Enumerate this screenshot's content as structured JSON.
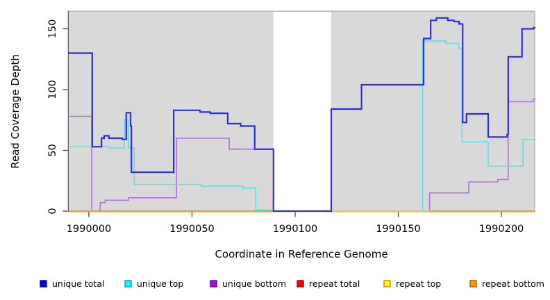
{
  "figure_title": "",
  "chart_data": {
    "type": "line",
    "step": true,
    "title": "",
    "xlabel": "Coordinate in Reference Genome",
    "ylabel": "Read Coverage Depth",
    "xlim": [
      1989990,
      1990216.5
    ],
    "ylim": [
      0,
      165
    ],
    "x_ticks": [
      1990000,
      1990050,
      1990100,
      1990150,
      1990200
    ],
    "x_tick_labels": [
      "1990000",
      "1990050",
      "1990100",
      "1990150",
      "1990200"
    ],
    "y_ticks": [
      0,
      50,
      100,
      150
    ],
    "y_tick_labels": [
      "0",
      "50",
      "100",
      "150"
    ],
    "grid": false,
    "plot_bg_color": "#d9d9d9",
    "panel_border_color": "#a3a3a3",
    "gap_region": {
      "from": 1990089.5,
      "to": 1990117.5,
      "color": "#ffffff"
    },
    "legend_position": "bottom",
    "series": [
      {
        "name": "unique bottom",
        "line_color": "#b470e2",
        "line_width": 1.6,
        "segments": [
          [
            [
              1989990,
              78
            ],
            [
              1990001.4,
              0
            ],
            [
              1990005.5,
              7
            ],
            [
              1990007.9,
              9
            ],
            [
              1990019.2,
              11
            ],
            [
              1990042.5,
              60
            ],
            [
              1990068,
              51
            ],
            [
              1990089.5,
              0
            ],
            [
              1990165.2,
              15
            ],
            [
              1990184.2,
              24
            ],
            [
              1990198.2,
              26
            ],
            [
              1990203.3,
              90
            ],
            [
              1990215.6,
              92
            ],
            [
              1990216.5,
              92
            ]
          ]
        ]
      },
      {
        "name": "unique top",
        "line_color": "#5cdee6",
        "line_width": 1.6,
        "segments": [
          [
            [
              1989990,
              53
            ],
            [
              1990009.7,
              52
            ],
            [
              1990017.2,
              75
            ],
            [
              1990019.2,
              52
            ],
            [
              1990022,
              22
            ],
            [
              1990054.5,
              20.5
            ],
            [
              1990074.7,
              19
            ],
            [
              1990080.9,
              1
            ],
            [
              1990089.5,
              0
            ],
            [
              1990161.8,
              140
            ],
            [
              1990173,
              138
            ],
            [
              1990179.3,
              134
            ],
            [
              1990180.9,
              57
            ],
            [
              1990193.6,
              37
            ],
            [
              1990210.5,
              59
            ],
            [
              1990216.5,
              59
            ]
          ]
        ]
      },
      {
        "name": "repeat total",
        "line_color": "#e8536a",
        "line_width": 1.8,
        "segments": [
          [
            [
              1989990,
              0
            ],
            [
              1990216.5,
              0
            ]
          ]
        ]
      },
      {
        "name": "repeat top",
        "line_color": "#f5e626",
        "line_width": 1.4,
        "segments": [
          [
            [
              1989990,
              0
            ],
            [
              1990216.5,
              0
            ]
          ]
        ]
      },
      {
        "name": "repeat bottom",
        "line_color": "#ff9a1f",
        "line_width": 2,
        "segments": [
          [
            [
              1989990,
              0
            ],
            [
              1990089.5,
              0
            ]
          ],
          [
            [
              1990165.2,
              0
            ],
            [
              1990216.5,
              0
            ]
          ]
        ]
      },
      {
        "name": "unique total",
        "line_color": "#2d2de0",
        "line_width": 2.2,
        "segments": [
          [
            [
              1989990,
              130
            ],
            [
              1990001.6,
              53
            ],
            [
              1990006.1,
              60
            ],
            [
              1990007.4,
              62
            ],
            [
              1990009.7,
              60
            ],
            [
              1990016.2,
              59
            ],
            [
              1990018.1,
              81
            ],
            [
              1990020.2,
              70
            ],
            [
              1990020.6,
              32
            ],
            [
              1990041.1,
              83
            ],
            [
              1990053.9,
              81.5
            ],
            [
              1990058.9,
              80.5
            ],
            [
              1990067.3,
              72
            ],
            [
              1990073.6,
              70
            ],
            [
              1990080.4,
              51
            ],
            [
              1990089.5,
              0
            ],
            [
              1990117.5,
              84
            ],
            [
              1990132.2,
              104
            ],
            [
              1990162.3,
              142
            ],
            [
              1990165.7,
              157
            ],
            [
              1990168.5,
              159
            ],
            [
              1990174,
              157
            ],
            [
              1990177,
              156
            ],
            [
              1990179.5,
              154
            ],
            [
              1990181.2,
              73
            ],
            [
              1990183.1,
              80
            ],
            [
              1990193.6,
              61
            ],
            [
              1990202.8,
              63
            ],
            [
              1990203.3,
              127
            ],
            [
              1990210,
              150
            ],
            [
              1990215.6,
              151
            ],
            [
              1990216.5,
              151
            ]
          ]
        ]
      }
    ]
  },
  "legend": {
    "items": [
      {
        "label": "unique total",
        "swatch_color": "#0000ee",
        "swatch_border": "#000099"
      },
      {
        "label": "unique top",
        "swatch_color": "#00ffff",
        "swatch_border": "#00a0b0"
      },
      {
        "label": "unique bottom",
        "swatch_color": "#9a0fd6",
        "swatch_border": "#6a00a0"
      },
      {
        "label": "repeat total",
        "swatch_color": "#ff0000",
        "swatch_border": "#aa0000"
      },
      {
        "label": "repeat top",
        "swatch_color": "#ffff00",
        "swatch_border": "#c09000"
      },
      {
        "label": "repeat bottom",
        "swatch_color": "#ff9900",
        "swatch_border": "#b36200"
      }
    ]
  }
}
